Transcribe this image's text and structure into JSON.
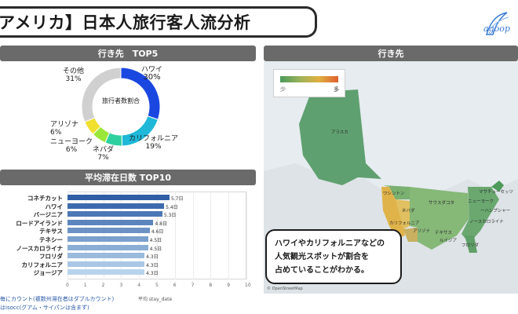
{
  "page_title": "アメリカ】日本人旅行客人流分析",
  "logo_text": "agoop",
  "colors": {
    "bar_top": "#2f5ea6",
    "bar_bottom": "#b8d4ec",
    "donut_hawaii": "#1a47e0",
    "donut_other": "#d0d0d0"
  },
  "destinations_panel": {
    "title": "行き先　TOP5",
    "center_label": "旅行者数割合"
  },
  "stay_panel": {
    "title": "平均滞在日数 TOP10",
    "axis_title": "平均 stay_date"
  },
  "map_panel": {
    "title": "行き先",
    "legend_min": "少",
    "legend_max": "多",
    "copyright": "© OpenStreetMap",
    "labels": {
      "alaska": "アラスカ",
      "washington": "ワシントン",
      "newyork": "ニューヨーク",
      "massachusetts": "マサチューセッツ",
      "hampshire": "ーハンプシャー",
      "california": "カリフォルニア",
      "nevada": "ネバダ",
      "arizona": "アリゾナ",
      "texas": "テキサス",
      "florida": "フロリダ",
      "louisiana": "ルイジア",
      "carolina": "ノースカロライナ",
      "dakota": "サウスダコタ"
    }
  },
  "callout": {
    "line1": "ハワイやカリフォルニアなどの",
    "line2": "人気観光スポットが割合を",
    "line3": "占めていることがわかる。"
  },
  "footnotes": {
    "line1": "毎にカウント(複数州滞在者はダブルカウント)",
    "line2": "はisocc(グアム・サイパンは含まず)"
  },
  "chart_data": [
    {
      "type": "pie",
      "title": "",
      "categories": [
        "ハワイ",
        "カリフォルニア",
        "ネバダ",
        "ニューヨーク",
        "アリゾナ",
        "その他"
      ],
      "values": [
        30,
        19,
        7,
        6,
        6,
        31
      ],
      "value_labels": [
        "30%",
        "19%",
        "7%",
        "6%",
        "6%",
        "31%"
      ],
      "colors": [
        "#1a47e0",
        "#1fb8d8",
        "#2ed0a0",
        "#9be63a",
        "#f0e030",
        "#d0d0d0"
      ]
    },
    {
      "type": "bar",
      "orientation": "horizontal",
      "title": "平均滞在日数 TOP10",
      "categories": [
        "コネチカット",
        "ハワイ",
        "バージニア",
        "ロードアイランド",
        "テキサス",
        "テネシー",
        "ノースカロライナ",
        "フロリダ",
        "カリフォルニア",
        "ジョージア"
      ],
      "values": [
        5.7,
        5.4,
        5.3,
        4.8,
        4.6,
        4.5,
        4.5,
        4.3,
        4.3,
        4.3
      ],
      "value_labels": [
        "5.7日",
        "5.4日",
        "5.3日",
        "4.8日",
        "4.6日",
        "4.5日",
        "4.5日",
        "4.3日",
        "4.3日",
        "4.3日"
      ],
      "xlabel": "平均 stay_date",
      "xlim": [
        0,
        10
      ],
      "xticks": [
        "0",
        "1",
        "2",
        "3",
        "4",
        "5",
        "6",
        "7",
        "8",
        "9",
        "10"
      ],
      "grid": true
    }
  ]
}
